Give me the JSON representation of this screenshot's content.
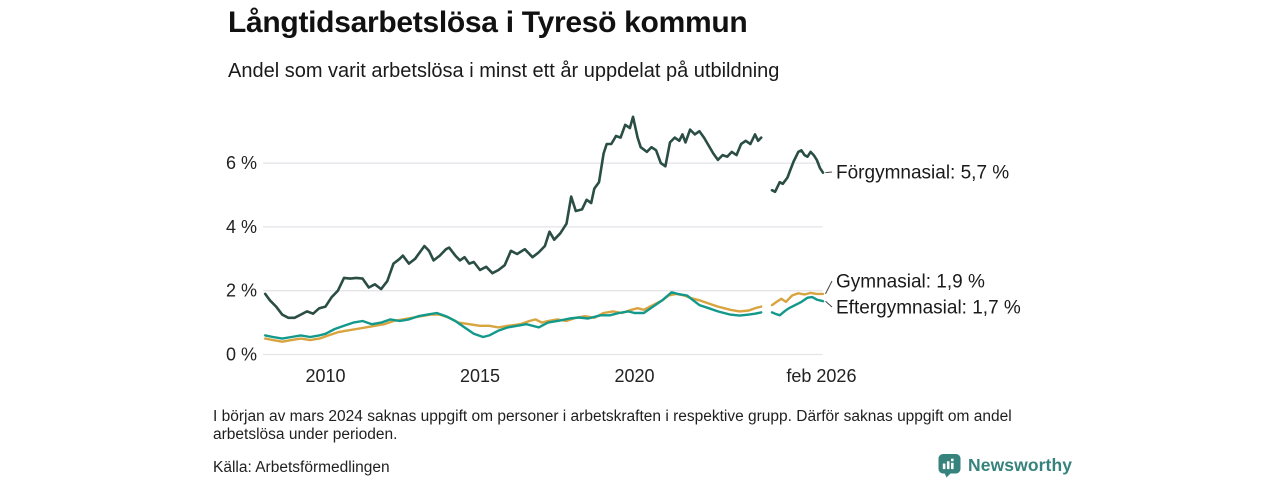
{
  "footer": {
    "note": "I början av mars 2024 saknas uppgift om personer i arbetskraften i respektive grupp. Därför saknas uppgift om andel arbetslösa under perioden.",
    "source": "Källa: Arbetsförmedlingen",
    "brand": "Newsworthy"
  },
  "colors": {
    "background": "#ffffff",
    "grid": "#e4e4e9",
    "axis_text": "#222222",
    "label_text": "#1a1a1a",
    "connector": "#444444",
    "brand_teal": "#36827c",
    "forgymnasial": "#2a4d44",
    "gymnasial": "#d8a43f",
    "eftergymnasial": "#12998b"
  },
  "chart_data": {
    "type": "line",
    "title": "Långtidsarbetslösa i Tyresö kommun",
    "subtitle": "Andel som varit arbetslösa i minst ett år uppdelat på utbildning",
    "xlabel": "",
    "ylabel": "",
    "unit": "%",
    "grid": "horizontal",
    "legend_position": "right-end-labels",
    "x_range": [
      2008.05,
      2026.1
    ],
    "ylim": [
      0,
      7.6
    ],
    "x_ticks": [
      {
        "value": 2010,
        "label": "2010"
      },
      {
        "value": 2015,
        "label": "2015"
      },
      {
        "value": 2020,
        "label": "2020"
      },
      {
        "value": 2026.05,
        "label": "feb 2026"
      }
    ],
    "y_ticks": [
      {
        "value": 0,
        "label": "0 %"
      },
      {
        "value": 2,
        "label": "2 %"
      },
      {
        "value": 4,
        "label": "4 %"
      },
      {
        "value": 6,
        "label": "6 %"
      }
    ],
    "gap_period": "mars 2024",
    "series": [
      {
        "name": "Förgymnasial",
        "end_label": "Förgymnasial: 5,7 %",
        "end_value": 5.7,
        "color": "#2a4d44",
        "width": 2.6,
        "label_py": 172,
        "points": [
          [
            2008.05,
            1.9
          ],
          [
            2008.2,
            1.7
          ],
          [
            2008.4,
            1.5
          ],
          [
            2008.6,
            1.25
          ],
          [
            2008.8,
            1.15
          ],
          [
            2009.0,
            1.15
          ],
          [
            2009.2,
            1.25
          ],
          [
            2009.4,
            1.35
          ],
          [
            2009.6,
            1.28
          ],
          [
            2009.8,
            1.45
          ],
          [
            2010.0,
            1.5
          ],
          [
            2010.2,
            1.8
          ],
          [
            2010.4,
            2.0
          ],
          [
            2010.6,
            2.4
          ],
          [
            2010.8,
            2.38
          ],
          [
            2011.0,
            2.4
          ],
          [
            2011.2,
            2.38
          ],
          [
            2011.4,
            2.1
          ],
          [
            2011.6,
            2.2
          ],
          [
            2011.8,
            2.05
          ],
          [
            2012.0,
            2.3
          ],
          [
            2012.2,
            2.85
          ],
          [
            2012.4,
            3.0
          ],
          [
            2012.5,
            3.1
          ],
          [
            2012.7,
            2.85
          ],
          [
            2012.9,
            3.0
          ],
          [
            2013.2,
            3.4
          ],
          [
            2013.35,
            3.25
          ],
          [
            2013.5,
            2.95
          ],
          [
            2013.7,
            3.1
          ],
          [
            2013.9,
            3.3
          ],
          [
            2014.0,
            3.35
          ],
          [
            2014.2,
            3.1
          ],
          [
            2014.35,
            2.95
          ],
          [
            2014.5,
            3.05
          ],
          [
            2014.65,
            2.85
          ],
          [
            2014.8,
            2.9
          ],
          [
            2015.0,
            2.65
          ],
          [
            2015.2,
            2.75
          ],
          [
            2015.4,
            2.55
          ],
          [
            2015.6,
            2.65
          ],
          [
            2015.8,
            2.8
          ],
          [
            2016.0,
            3.25
          ],
          [
            2016.2,
            3.15
          ],
          [
            2016.45,
            3.3
          ],
          [
            2016.7,
            3.05
          ],
          [
            2016.9,
            3.2
          ],
          [
            2017.1,
            3.4
          ],
          [
            2017.25,
            3.85
          ],
          [
            2017.4,
            3.6
          ],
          [
            2017.6,
            3.8
          ],
          [
            2017.8,
            4.1
          ],
          [
            2017.95,
            4.95
          ],
          [
            2018.1,
            4.5
          ],
          [
            2018.3,
            4.55
          ],
          [
            2018.45,
            4.85
          ],
          [
            2018.6,
            4.75
          ],
          [
            2018.7,
            5.2
          ],
          [
            2018.85,
            5.4
          ],
          [
            2019.0,
            6.3
          ],
          [
            2019.1,
            6.6
          ],
          [
            2019.25,
            6.6
          ],
          [
            2019.4,
            6.85
          ],
          [
            2019.55,
            6.8
          ],
          [
            2019.7,
            7.2
          ],
          [
            2019.85,
            7.1
          ],
          [
            2019.95,
            7.45
          ],
          [
            2020.1,
            6.8
          ],
          [
            2020.2,
            6.5
          ],
          [
            2020.4,
            6.35
          ],
          [
            2020.55,
            6.5
          ],
          [
            2020.7,
            6.4
          ],
          [
            2020.85,
            6.0
          ],
          [
            2021.0,
            5.9
          ],
          [
            2021.15,
            6.65
          ],
          [
            2021.3,
            6.8
          ],
          [
            2021.45,
            6.7
          ],
          [
            2021.55,
            6.9
          ],
          [
            2021.65,
            6.65
          ],
          [
            2021.8,
            7.05
          ],
          [
            2021.95,
            6.9
          ],
          [
            2022.1,
            7.0
          ],
          [
            2022.25,
            6.8
          ],
          [
            2022.4,
            6.55
          ],
          [
            2022.55,
            6.3
          ],
          [
            2022.7,
            6.1
          ],
          [
            2022.85,
            6.25
          ],
          [
            2023.0,
            6.2
          ],
          [
            2023.15,
            6.35
          ],
          [
            2023.3,
            6.25
          ],
          [
            2023.45,
            6.6
          ],
          [
            2023.6,
            6.7
          ],
          [
            2023.75,
            6.6
          ],
          [
            2023.9,
            6.9
          ],
          [
            2024.0,
            6.7
          ],
          [
            2024.1,
            6.8
          ],
          null,
          [
            2024.45,
            5.15
          ],
          [
            2024.55,
            5.1
          ],
          [
            2024.7,
            5.4
          ],
          [
            2024.8,
            5.35
          ],
          [
            2024.95,
            5.55
          ],
          [
            2025.05,
            5.8
          ],
          [
            2025.15,
            6.05
          ],
          [
            2025.3,
            6.35
          ],
          [
            2025.4,
            6.4
          ],
          [
            2025.5,
            6.25
          ],
          [
            2025.6,
            6.2
          ],
          [
            2025.7,
            6.35
          ],
          [
            2025.8,
            6.25
          ],
          [
            2025.9,
            6.1
          ],
          [
            2026.0,
            5.85
          ],
          [
            2026.1,
            5.7
          ]
        ]
      },
      {
        "name": "Gymnasial",
        "end_label": "Gymnasial: 1,9 %",
        "end_value": 1.9,
        "color": "#d8a43f",
        "width": 2.4,
        "label_py": 281,
        "points": [
          [
            2008.05,
            0.5
          ],
          [
            2008.3,
            0.45
          ],
          [
            2008.6,
            0.4
          ],
          [
            2008.9,
            0.45
          ],
          [
            2009.2,
            0.5
          ],
          [
            2009.5,
            0.45
          ],
          [
            2009.8,
            0.5
          ],
          [
            2010.1,
            0.6
          ],
          [
            2010.4,
            0.7
          ],
          [
            2010.7,
            0.75
          ],
          [
            2011.0,
            0.8
          ],
          [
            2011.3,
            0.85
          ],
          [
            2011.6,
            0.9
          ],
          [
            2011.9,
            0.95
          ],
          [
            2012.2,
            1.05
          ],
          [
            2012.5,
            1.1
          ],
          [
            2012.8,
            1.15
          ],
          [
            2013.1,
            1.2
          ],
          [
            2013.4,
            1.25
          ],
          [
            2013.7,
            1.25
          ],
          [
            2014.0,
            1.15
          ],
          [
            2014.3,
            1.0
          ],
          [
            2014.65,
            0.95
          ],
          [
            2015.0,
            0.9
          ],
          [
            2015.3,
            0.9
          ],
          [
            2015.6,
            0.85
          ],
          [
            2015.9,
            0.9
          ],
          [
            2016.3,
            0.95
          ],
          [
            2016.6,
            1.05
          ],
          [
            2016.8,
            1.1
          ],
          [
            2017.0,
            1.0
          ],
          [
            2017.2,
            1.05
          ],
          [
            2017.5,
            1.1
          ],
          [
            2017.8,
            1.05
          ],
          [
            2018.1,
            1.15
          ],
          [
            2018.4,
            1.2
          ],
          [
            2018.7,
            1.15
          ],
          [
            2019.0,
            1.3
          ],
          [
            2019.3,
            1.35
          ],
          [
            2019.6,
            1.3
          ],
          [
            2019.9,
            1.4
          ],
          [
            2020.1,
            1.45
          ],
          [
            2020.3,
            1.4
          ],
          [
            2020.6,
            1.55
          ],
          [
            2020.9,
            1.7
          ],
          [
            2021.1,
            1.85
          ],
          [
            2021.35,
            1.9
          ],
          [
            2021.6,
            1.85
          ],
          [
            2021.9,
            1.75
          ],
          [
            2022.1,
            1.7
          ],
          [
            2022.4,
            1.6
          ],
          [
            2022.7,
            1.5
          ],
          [
            2022.9,
            1.45
          ],
          [
            2023.1,
            1.4
          ],
          [
            2023.4,
            1.35
          ],
          [
            2023.7,
            1.38
          ],
          [
            2023.9,
            1.45
          ],
          [
            2024.1,
            1.5
          ],
          null,
          [
            2024.45,
            1.55
          ],
          [
            2024.6,
            1.65
          ],
          [
            2024.75,
            1.75
          ],
          [
            2024.9,
            1.65
          ],
          [
            2025.1,
            1.85
          ],
          [
            2025.3,
            1.92
          ],
          [
            2025.5,
            1.88
          ],
          [
            2025.7,
            1.93
          ],
          [
            2025.9,
            1.9
          ],
          [
            2026.1,
            1.9
          ]
        ]
      },
      {
        "name": "Eftergymnasial",
        "end_label": "Eftergymnasial: 1,7 %",
        "end_value": 1.7,
        "color": "#12998b",
        "width": 2.4,
        "label_py": 307,
        "points": [
          [
            2008.05,
            0.6
          ],
          [
            2008.3,
            0.55
          ],
          [
            2008.6,
            0.5
          ],
          [
            2008.9,
            0.55
          ],
          [
            2009.2,
            0.6
          ],
          [
            2009.5,
            0.55
          ],
          [
            2009.8,
            0.6
          ],
          [
            2010.0,
            0.65
          ],
          [
            2010.3,
            0.8
          ],
          [
            2010.6,
            0.9
          ],
          [
            2010.9,
            1.0
          ],
          [
            2011.2,
            1.05
          ],
          [
            2011.5,
            0.95
          ],
          [
            2011.8,
            1.0
          ],
          [
            2012.1,
            1.1
          ],
          [
            2012.4,
            1.05
          ],
          [
            2012.7,
            1.1
          ],
          [
            2013.0,
            1.2
          ],
          [
            2013.3,
            1.25
          ],
          [
            2013.6,
            1.3
          ],
          [
            2013.9,
            1.2
          ],
          [
            2014.2,
            1.05
          ],
          [
            2014.5,
            0.85
          ],
          [
            2014.8,
            0.65
          ],
          [
            2015.1,
            0.55
          ],
          [
            2015.3,
            0.6
          ],
          [
            2015.6,
            0.75
          ],
          [
            2015.9,
            0.85
          ],
          [
            2016.2,
            0.9
          ],
          [
            2016.5,
            0.95
          ],
          [
            2016.9,
            0.85
          ],
          [
            2017.2,
            1.0
          ],
          [
            2017.6,
            1.07
          ],
          [
            2017.9,
            1.13
          ],
          [
            2018.2,
            1.16
          ],
          [
            2018.5,
            1.13
          ],
          [
            2018.9,
            1.23
          ],
          [
            2019.2,
            1.23
          ],
          [
            2019.5,
            1.3
          ],
          [
            2019.8,
            1.35
          ],
          [
            2020.0,
            1.3
          ],
          [
            2020.3,
            1.3
          ],
          [
            2020.6,
            1.5
          ],
          [
            2020.9,
            1.7
          ],
          [
            2021.2,
            1.95
          ],
          [
            2021.4,
            1.9
          ],
          [
            2021.7,
            1.85
          ],
          [
            2021.9,
            1.7
          ],
          [
            2022.1,
            1.55
          ],
          [
            2022.4,
            1.45
          ],
          [
            2022.7,
            1.35
          ],
          [
            2022.9,
            1.3
          ],
          [
            2023.1,
            1.25
          ],
          [
            2023.4,
            1.22
          ],
          [
            2023.7,
            1.25
          ],
          [
            2023.9,
            1.28
          ],
          [
            2024.1,
            1.32
          ],
          null,
          [
            2024.45,
            1.32
          ],
          [
            2024.55,
            1.28
          ],
          [
            2024.7,
            1.23
          ],
          [
            2024.85,
            1.35
          ],
          [
            2025.0,
            1.45
          ],
          [
            2025.2,
            1.55
          ],
          [
            2025.4,
            1.65
          ],
          [
            2025.6,
            1.78
          ],
          [
            2025.75,
            1.8
          ],
          [
            2025.9,
            1.72
          ],
          [
            2026.1,
            1.67
          ]
        ]
      }
    ]
  }
}
